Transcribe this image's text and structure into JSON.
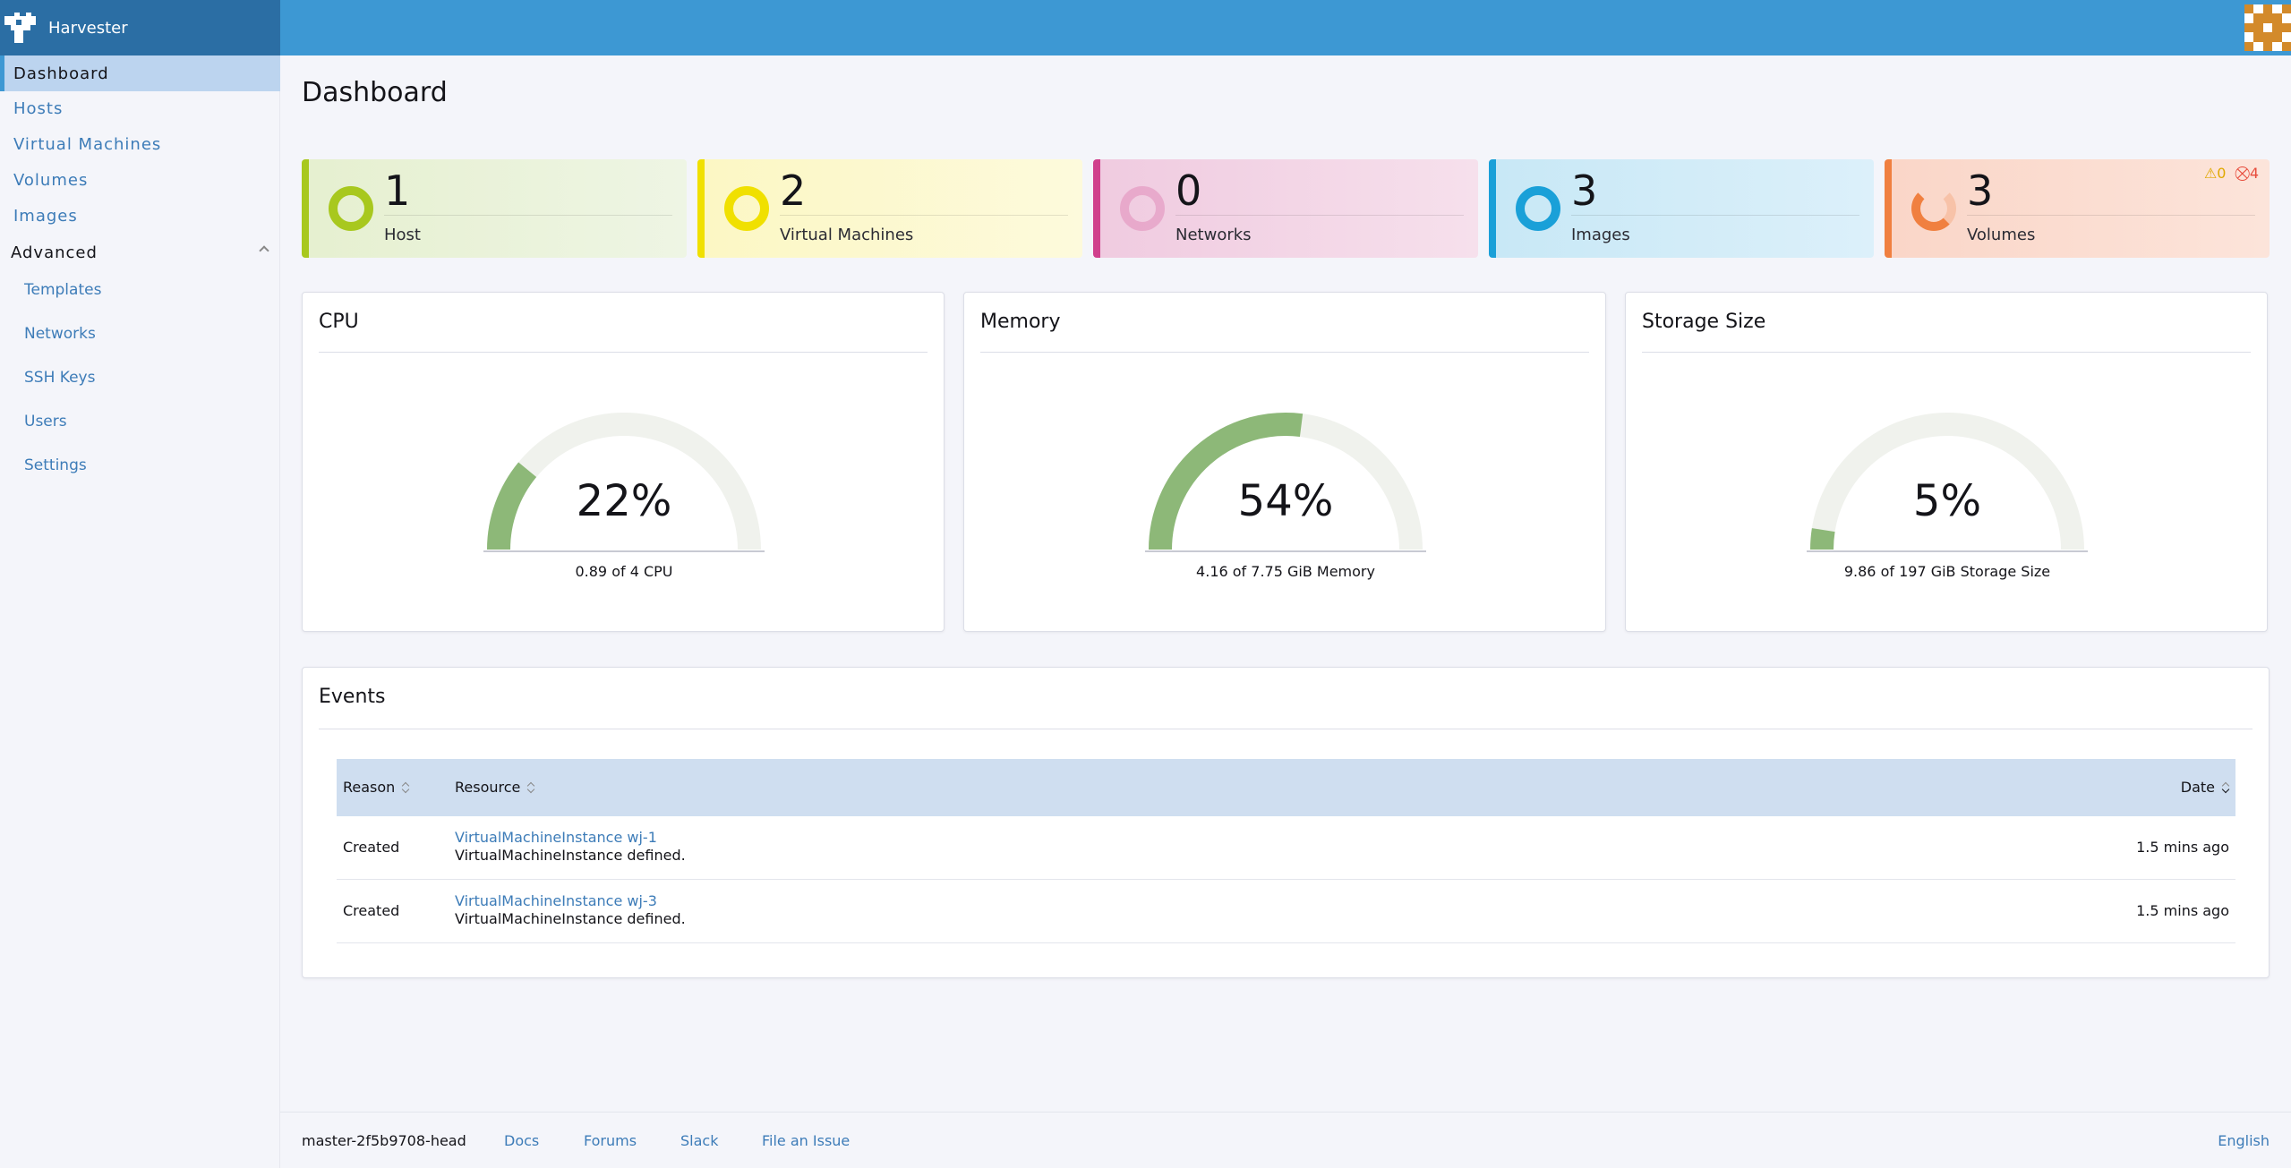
{
  "app": {
    "name": "Harvester"
  },
  "sidebar": {
    "items": [
      {
        "label": "Dashboard",
        "active": true
      },
      {
        "label": "Hosts"
      },
      {
        "label": "Virtual Machines"
      },
      {
        "label": "Volumes"
      },
      {
        "label": "Images"
      }
    ],
    "group": {
      "label": "Advanced",
      "expanded": true
    },
    "sub_items": [
      {
        "label": "Templates"
      },
      {
        "label": "Networks"
      },
      {
        "label": "SSH Keys"
      },
      {
        "label": "Users"
      },
      {
        "label": "Settings"
      }
    ]
  },
  "page": {
    "title": "Dashboard"
  },
  "stats": [
    {
      "count": "1",
      "label": "Host",
      "color": "#a8c81e",
      "bg_from": "#e6f0d0",
      "bg_to": "#eef5e4"
    },
    {
      "count": "2",
      "label": "Virtual Machines",
      "color": "#f0e000",
      "bg_from": "#fcf7c4",
      "bg_to": "#fdfadc"
    },
    {
      "count": "0",
      "label": "Networks",
      "color": "#d0408c",
      "bg_from": "#f0cbe0",
      "bg_to": "#f6e0ec"
    },
    {
      "count": "3",
      "label": "Images",
      "color": "#1aa0d8",
      "bg_from": "#c8e8f6",
      "bg_to": "#dcf0fa"
    },
    {
      "count": "3",
      "label": "Volumes",
      "color": "#f08040",
      "bg_from": "#fad6c8",
      "bg_to": "#fce4da",
      "warning_count": "0",
      "error_count": "4"
    }
  ],
  "gauges": [
    {
      "title": "CPU",
      "percent_label": "22%",
      "fraction": 0.22,
      "detail": "0.89 of 4 CPU"
    },
    {
      "title": "Memory",
      "percent_label": "54%",
      "fraction": 0.54,
      "detail": "4.16 of 7.75 GiB Memory"
    },
    {
      "title": "Storage Size",
      "percent_label": "5%",
      "fraction": 0.05,
      "detail": "9.86 of 197 GiB Storage Size"
    }
  ],
  "events": {
    "title": "Events",
    "columns": {
      "reason": "Reason",
      "resource": "Resource",
      "date": "Date"
    },
    "rows": [
      {
        "reason": "Created",
        "resource_link": "VirtualMachineInstance wj-1",
        "message": "VirtualMachineInstance defined.",
        "date": "1.5 mins ago"
      },
      {
        "reason": "Created",
        "resource_link": "VirtualMachineInstance wj-3",
        "message": "VirtualMachineInstance defined.",
        "date": "1.5 mins ago"
      }
    ]
  },
  "footer": {
    "version": "master-2f5b9708-head",
    "links": [
      "Docs",
      "Forums",
      "Slack",
      "File an Issue"
    ],
    "language": "English"
  }
}
